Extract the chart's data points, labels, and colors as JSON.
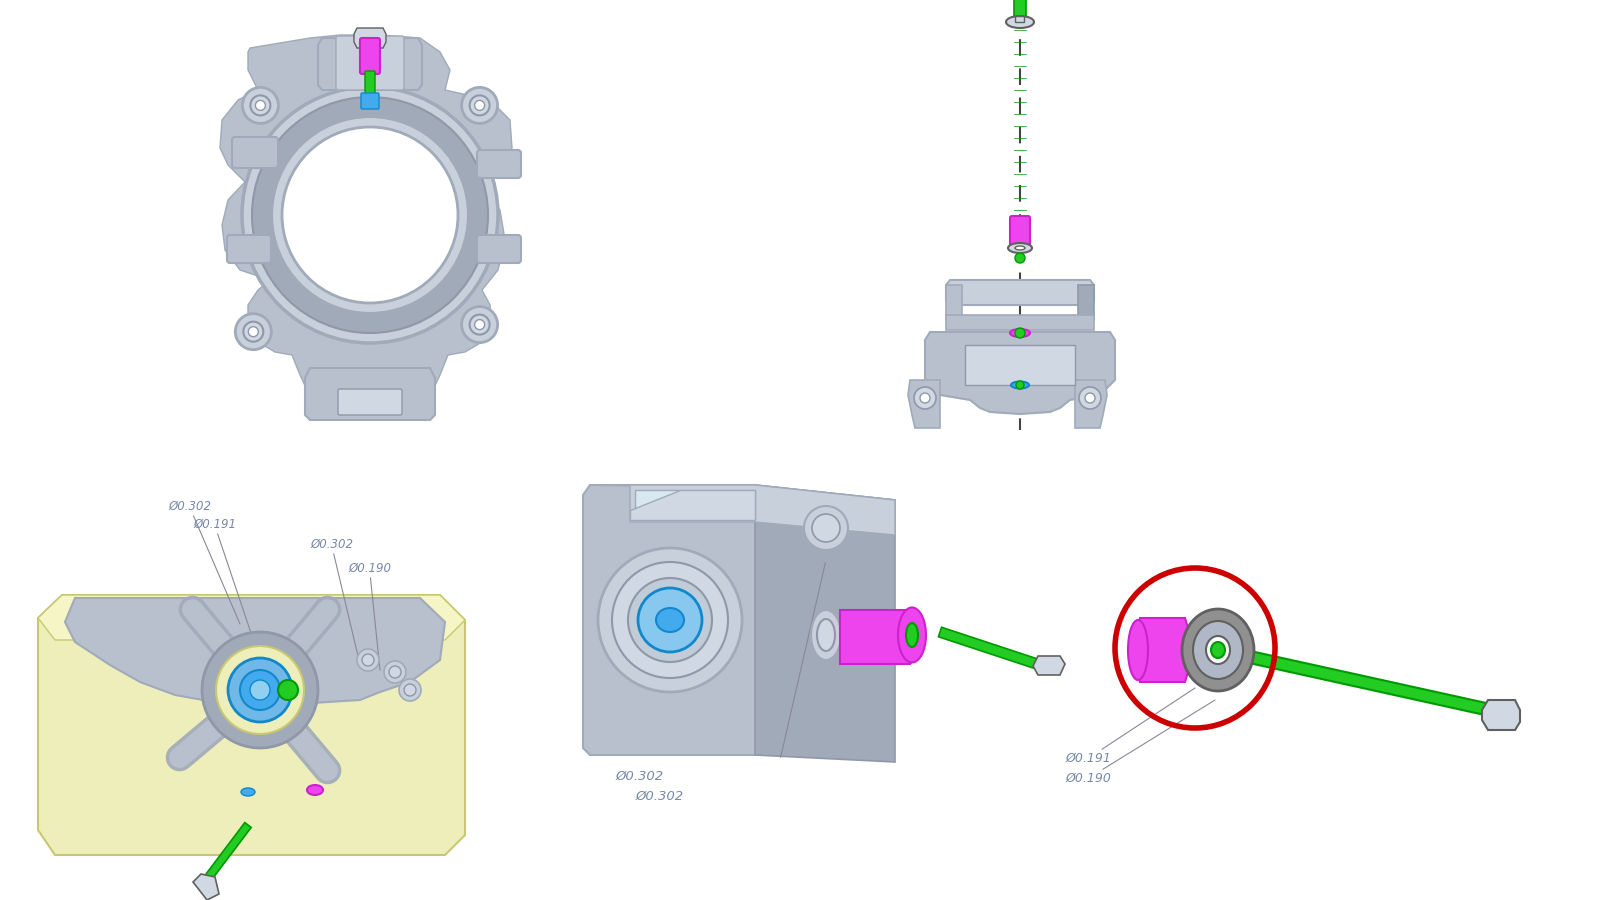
{
  "bg": "#ffffff",
  "fig_w": 16.0,
  "fig_h": 9.0,
  "dpi": 100,
  "uc": "#b8c0ce",
  "uc2": "#a0aab8",
  "uc3": "#c8d0dc",
  "uc4": "#9098a8",
  "yc": "#eeeebb",
  "mc": "#ee44ee",
  "mc2": "#cc22cc",
  "gc": "#22cc22",
  "gc2": "#009900",
  "bc": "#44aaee",
  "bc2": "#1188cc",
  "gray": "#909090",
  "dgray": "#606060",
  "lgray": "#d0d8e4",
  "rc": "#cc0000",
  "dtc": "#7888aa",
  "alc": "#888899",
  "dlc": "#444444",
  "dims": {
    "d302": "Ø0.302",
    "d191": "Ø0.191",
    "d190": "Ø0.190"
  }
}
